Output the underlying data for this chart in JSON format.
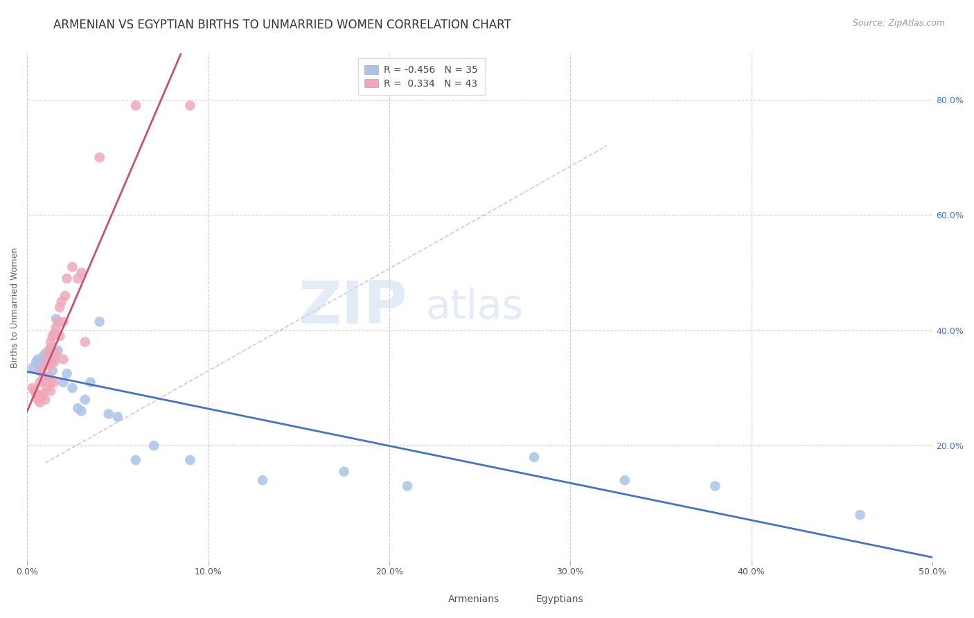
{
  "title": "ARMENIAN VS EGYPTIAN BIRTHS TO UNMARRIED WOMEN CORRELATION CHART",
  "source": "Source: ZipAtlas.com",
  "ylabel": "Births to Unmarried Women",
  "xlabel_ticks": [
    "0.0%",
    "10.0%",
    "20.0%",
    "30.0%",
    "40.0%",
    "50.0%"
  ],
  "xlabel_vals": [
    0.0,
    0.1,
    0.2,
    0.3,
    0.4,
    0.5
  ],
  "ylabel_ticks": [
    "20.0%",
    "40.0%",
    "60.0%",
    "80.0%"
  ],
  "ylabel_vals": [
    0.2,
    0.4,
    0.6,
    0.8
  ],
  "xlim": [
    0.0,
    0.5
  ],
  "ylim": [
    0.0,
    0.88
  ],
  "armenian_color": "#aac4e8",
  "egyptian_color": "#f0a8b8",
  "armenian_R": -0.456,
  "armenian_N": 35,
  "egyptian_R": 0.334,
  "egyptian_N": 43,
  "armenian_line_color": "#4472c4",
  "egyptian_line_color": "#c85070",
  "diagonal_color": "#cccccc",
  "background_color": "#ffffff",
  "grid_color": "#cccccc",
  "title_color": "#333333",
  "source_color": "#999999",
  "legend_label_armenian": "Armenians",
  "legend_label_egyptian": "Egyptians",
  "armenian_x": [
    0.003,
    0.005,
    0.006,
    0.007,
    0.008,
    0.009,
    0.01,
    0.01,
    0.011,
    0.012,
    0.013,
    0.014,
    0.015,
    0.016,
    0.017,
    0.02,
    0.022,
    0.025,
    0.028,
    0.03,
    0.032,
    0.035,
    0.04,
    0.045,
    0.05,
    0.06,
    0.07,
    0.09,
    0.13,
    0.175,
    0.21,
    0.28,
    0.33,
    0.38,
    0.46
  ],
  "armenian_y": [
    0.335,
    0.345,
    0.35,
    0.33,
    0.34,
    0.355,
    0.36,
    0.35,
    0.345,
    0.36,
    0.37,
    0.33,
    0.35,
    0.42,
    0.365,
    0.31,
    0.325,
    0.3,
    0.265,
    0.26,
    0.28,
    0.31,
    0.415,
    0.255,
    0.25,
    0.175,
    0.2,
    0.175,
    0.14,
    0.155,
    0.13,
    0.18,
    0.14,
    0.13,
    0.08
  ],
  "egyptian_x": [
    0.003,
    0.004,
    0.005,
    0.006,
    0.007,
    0.007,
    0.008,
    0.008,
    0.009,
    0.009,
    0.01,
    0.01,
    0.01,
    0.011,
    0.011,
    0.012,
    0.012,
    0.013,
    0.013,
    0.013,
    0.013,
    0.014,
    0.014,
    0.015,
    0.015,
    0.015,
    0.016,
    0.016,
    0.017,
    0.018,
    0.018,
    0.019,
    0.02,
    0.02,
    0.021,
    0.022,
    0.025,
    0.028,
    0.03,
    0.032,
    0.04,
    0.06,
    0.09
  ],
  "egyptian_y": [
    0.3,
    0.295,
    0.29,
    0.28,
    0.31,
    0.275,
    0.33,
    0.285,
    0.32,
    0.29,
    0.34,
    0.31,
    0.28,
    0.355,
    0.3,
    0.365,
    0.32,
    0.38,
    0.34,
    0.31,
    0.295,
    0.39,
    0.36,
    0.395,
    0.345,
    0.31,
    0.405,
    0.36,
    0.415,
    0.44,
    0.39,
    0.45,
    0.415,
    0.35,
    0.46,
    0.49,
    0.51,
    0.49,
    0.5,
    0.38,
    0.7,
    0.79,
    0.79
  ],
  "watermark_zip": "ZIP",
  "watermark_atlas": "atlas",
  "title_fontsize": 12,
  "axis_fontsize": 9,
  "tick_fontsize": 9,
  "source_fontsize": 9,
  "legend_fontsize": 10
}
